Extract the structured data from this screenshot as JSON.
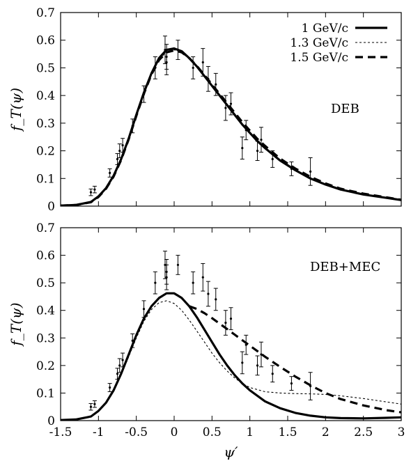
{
  "chart_data": [
    {
      "type": "line",
      "panel": "top",
      "ylabel": "f_T(ψ)",
      "xlabel": "",
      "annotation": "DEB",
      "xlim": [
        -1.5,
        3
      ],
      "ylim": [
        0,
        0.7
      ],
      "yticks": [
        "0",
        "0.1",
        "0.2",
        "0.3",
        "0.4",
        "0.5",
        "0.6",
        "0.7"
      ],
      "legend_position": "top-right",
      "series": [
        {
          "name": "1 GeV/c",
          "style": "solid-thick",
          "x": [
            -1.5,
            -1.3,
            -1.1,
            -1.0,
            -0.9,
            -0.8,
            -0.7,
            -0.6,
            -0.5,
            -0.4,
            -0.3,
            -0.2,
            -0.1,
            0.0,
            0.1,
            0.2,
            0.3,
            0.4,
            0.5,
            0.6,
            0.7,
            0.8,
            0.9,
            1.0,
            1.1,
            1.2,
            1.4,
            1.6,
            1.8,
            2.0,
            2.2,
            2.5,
            2.8,
            3.0
          ],
          "y": [
            0.002,
            0.004,
            0.015,
            0.035,
            0.065,
            0.11,
            0.17,
            0.245,
            0.33,
            0.41,
            0.48,
            0.535,
            0.565,
            0.57,
            0.56,
            0.535,
            0.505,
            0.47,
            0.435,
            0.4,
            0.365,
            0.33,
            0.295,
            0.265,
            0.235,
            0.21,
            0.165,
            0.13,
            0.1,
            0.078,
            0.06,
            0.042,
            0.03,
            0.022
          ]
        },
        {
          "name": "1.3 GeV/c",
          "style": "dotted-thin",
          "x": [
            -1.5,
            -1.3,
            -1.1,
            -1.0,
            -0.9,
            -0.8,
            -0.7,
            -0.6,
            -0.5,
            -0.4,
            -0.3,
            -0.2,
            -0.1,
            0.0,
            0.1,
            0.2,
            0.3,
            0.4,
            0.5,
            0.6,
            0.7,
            0.8,
            0.9,
            1.0,
            1.1,
            1.2,
            1.4,
            1.6,
            1.8,
            2.0,
            2.2,
            2.5,
            2.8,
            3.0
          ],
          "y": [
            0.002,
            0.004,
            0.014,
            0.033,
            0.063,
            0.108,
            0.168,
            0.243,
            0.328,
            0.408,
            0.478,
            0.53,
            0.558,
            0.565,
            0.555,
            0.532,
            0.502,
            0.468,
            0.434,
            0.4,
            0.366,
            0.332,
            0.298,
            0.268,
            0.238,
            0.213,
            0.168,
            0.133,
            0.103,
            0.08,
            0.062,
            0.044,
            0.031,
            0.023
          ]
        },
        {
          "name": "1.5 GeV/c",
          "style": "dashed-thick",
          "x": [
            -1.5,
            -1.3,
            -1.1,
            -1.0,
            -0.9,
            -0.8,
            -0.7,
            -0.6,
            -0.5,
            -0.4,
            -0.3,
            -0.2,
            -0.1,
            0.0,
            0.1,
            0.2,
            0.3,
            0.4,
            0.5,
            0.6,
            0.7,
            0.8,
            0.9,
            1.0,
            1.1,
            1.2,
            1.4,
            1.6,
            1.8,
            2.0,
            2.2,
            2.5,
            2.8,
            3.0
          ],
          "y": [
            0.002,
            0.004,
            0.014,
            0.033,
            0.063,
            0.107,
            0.167,
            0.242,
            0.326,
            0.406,
            0.476,
            0.528,
            0.556,
            0.563,
            0.556,
            0.535,
            0.507,
            0.474,
            0.44,
            0.406,
            0.372,
            0.338,
            0.304,
            0.273,
            0.243,
            0.218,
            0.172,
            0.136,
            0.106,
            0.082,
            0.063,
            0.045,
            0.032,
            0.023
          ]
        }
      ],
      "data_points": {
        "x": [
          -1.1,
          -1.05,
          -0.85,
          -0.75,
          -0.72,
          -0.68,
          -0.55,
          -0.4,
          -0.25,
          -0.12,
          -0.1,
          -0.1,
          0.05,
          0.25,
          0.38,
          0.45,
          0.55,
          0.68,
          0.75,
          0.9,
          0.95,
          1.1,
          1.15,
          1.3,
          1.55,
          1.8
        ],
        "y": [
          0.05,
          0.06,
          0.12,
          0.17,
          0.2,
          0.22,
          0.29,
          0.405,
          0.5,
          0.565,
          0.52,
          0.54,
          0.565,
          0.5,
          0.52,
          0.46,
          0.44,
          0.355,
          0.37,
          0.21,
          0.275,
          0.2,
          0.24,
          0.17,
          0.135,
          0.125
        ],
        "err": [
          0.012,
          0.012,
          0.015,
          0.02,
          0.025,
          0.025,
          0.025,
          0.03,
          0.04,
          0.05,
          0.045,
          0.045,
          0.035,
          0.04,
          0.05,
          0.045,
          0.04,
          0.045,
          0.04,
          0.04,
          0.035,
          0.035,
          0.045,
          0.03,
          0.025,
          0.05
        ]
      }
    },
    {
      "type": "line",
      "panel": "bottom",
      "ylabel": "f_T(ψ)",
      "xlabel": "ψ′",
      "annotation": "DEB+MEC",
      "xlim": [
        -1.5,
        3
      ],
      "ylim": [
        0,
        0.7
      ],
      "xticks": [
        "-1.5",
        "-1",
        "-0.5",
        "0",
        "0.5",
        "1",
        "1.5",
        "2",
        "2.5",
        "3"
      ],
      "yticks": [
        "0",
        "0.1",
        "0.2",
        "0.3",
        "0.4",
        "0.5",
        "0.6",
        "0.7"
      ],
      "series": [
        {
          "name": "1 GeV/c",
          "style": "solid-thick",
          "x": [
            -1.5,
            -1.3,
            -1.1,
            -1.0,
            -0.9,
            -0.8,
            -0.7,
            -0.6,
            -0.5,
            -0.4,
            -0.3,
            -0.2,
            -0.1,
            0.0,
            0.1,
            0.2,
            0.3,
            0.4,
            0.5,
            0.6,
            0.7,
            0.8,
            0.9,
            1.0,
            1.2,
            1.4,
            1.6,
            1.8,
            2.0,
            2.2,
            2.5,
            2.8,
            3.0
          ],
          "y": [
            0.002,
            0.004,
            0.015,
            0.035,
            0.065,
            0.11,
            0.17,
            0.24,
            0.31,
            0.37,
            0.415,
            0.445,
            0.462,
            0.462,
            0.445,
            0.415,
            0.375,
            0.33,
            0.285,
            0.24,
            0.2,
            0.165,
            0.135,
            0.11,
            0.07,
            0.045,
            0.028,
            0.018,
            0.012,
            0.009,
            0.008,
            0.01,
            0.012
          ]
        },
        {
          "name": "1.3 GeV/c",
          "style": "dotted-thin",
          "x": [
            -1.5,
            -1.3,
            -1.1,
            -1.0,
            -0.9,
            -0.8,
            -0.7,
            -0.6,
            -0.5,
            -0.4,
            -0.3,
            -0.2,
            -0.1,
            0.0,
            0.1,
            0.2,
            0.3,
            0.4,
            0.5,
            0.6,
            0.7,
            0.8,
            0.9,
            1.0,
            1.2,
            1.4,
            1.6,
            1.8,
            2.0,
            2.2,
            2.5,
            2.8,
            3.0
          ],
          "y": [
            0.002,
            0.004,
            0.015,
            0.034,
            0.064,
            0.108,
            0.165,
            0.232,
            0.3,
            0.36,
            0.403,
            0.428,
            0.435,
            0.425,
            0.4,
            0.365,
            0.325,
            0.285,
            0.245,
            0.21,
            0.18,
            0.155,
            0.135,
            0.12,
            0.105,
            0.1,
            0.098,
            0.097,
            0.095,
            0.09,
            0.08,
            0.068,
            0.06
          ]
        },
        {
          "name": "1.5 GeV/c",
          "style": "dashed-thick",
          "x": [
            0.2,
            0.3,
            0.4,
            0.5,
            0.6,
            0.7,
            0.8,
            0.9,
            1.0,
            1.2,
            1.4,
            1.6,
            1.8,
            2.0,
            2.2,
            2.5,
            2.8,
            3.0
          ],
          "y": [
            0.415,
            0.405,
            0.39,
            0.372,
            0.352,
            0.332,
            0.312,
            0.292,
            0.272,
            0.232,
            0.195,
            0.16,
            0.128,
            0.1,
            0.078,
            0.055,
            0.038,
            0.03
          ]
        }
      ],
      "data_points": {
        "x": [
          -1.1,
          -1.05,
          -0.85,
          -0.75,
          -0.72,
          -0.68,
          -0.55,
          -0.4,
          -0.25,
          -0.12,
          -0.1,
          -0.1,
          0.05,
          0.25,
          0.38,
          0.45,
          0.55,
          0.68,
          0.75,
          0.9,
          0.95,
          1.1,
          1.15,
          1.3,
          1.55,
          1.8
        ],
        "y": [
          0.05,
          0.06,
          0.12,
          0.17,
          0.2,
          0.22,
          0.29,
          0.405,
          0.5,
          0.565,
          0.52,
          0.54,
          0.565,
          0.5,
          0.52,
          0.46,
          0.44,
          0.355,
          0.37,
          0.21,
          0.275,
          0.2,
          0.24,
          0.17,
          0.135,
          0.125
        ],
        "err": [
          0.012,
          0.012,
          0.015,
          0.02,
          0.025,
          0.025,
          0.025,
          0.03,
          0.04,
          0.05,
          0.045,
          0.045,
          0.035,
          0.04,
          0.05,
          0.045,
          0.04,
          0.045,
          0.04,
          0.04,
          0.035,
          0.035,
          0.045,
          0.03,
          0.025,
          0.05
        ]
      }
    }
  ]
}
